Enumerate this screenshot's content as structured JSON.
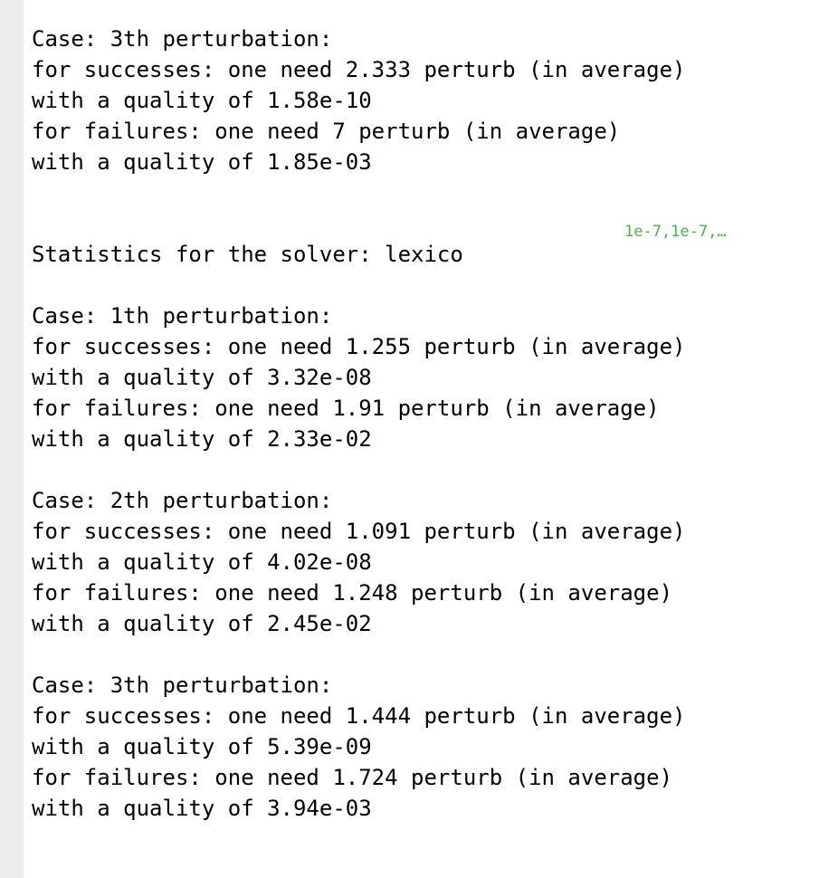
{
  "cell_tag": "1e-7,1e-7,…",
  "block_top": {
    "case_header": "Case: 3th perturbation:",
    "successes": "for successes: one need 2.333 perturb (in average)",
    "successes_quality": "with a quality of 1.58e-10",
    "failures": "for failures: one need 7 perturb (in average)",
    "failures_quality": "with a quality of 1.85e-03"
  },
  "solver_heading": "Statistics for the solver: lexico",
  "cases": [
    {
      "case_header": "Case: 1th perturbation:",
      "successes": "for successes: one need 1.255 perturb (in average)",
      "successes_quality": "with a quality of 3.32e-08",
      "failures": "for failures: one need 1.91 perturb (in average)",
      "failures_quality": "with a quality of 2.33e-02"
    },
    {
      "case_header": "Case: 2th perturbation:",
      "successes": "for successes: one need 1.091 perturb (in average)",
      "successes_quality": "with a quality of 4.02e-08",
      "failures": "for failures: one need 1.248 perturb (in average)",
      "failures_quality": "with a quality of 2.45e-02"
    },
    {
      "case_header": "Case: 3th perturbation:",
      "successes": "for successes: one need 1.444 perturb (in average)",
      "successes_quality": "with a quality of 5.39e-09",
      "failures": "for failures: one need 1.724 perturb (in average)",
      "failures_quality": "with a quality of 3.94e-03"
    }
  ]
}
